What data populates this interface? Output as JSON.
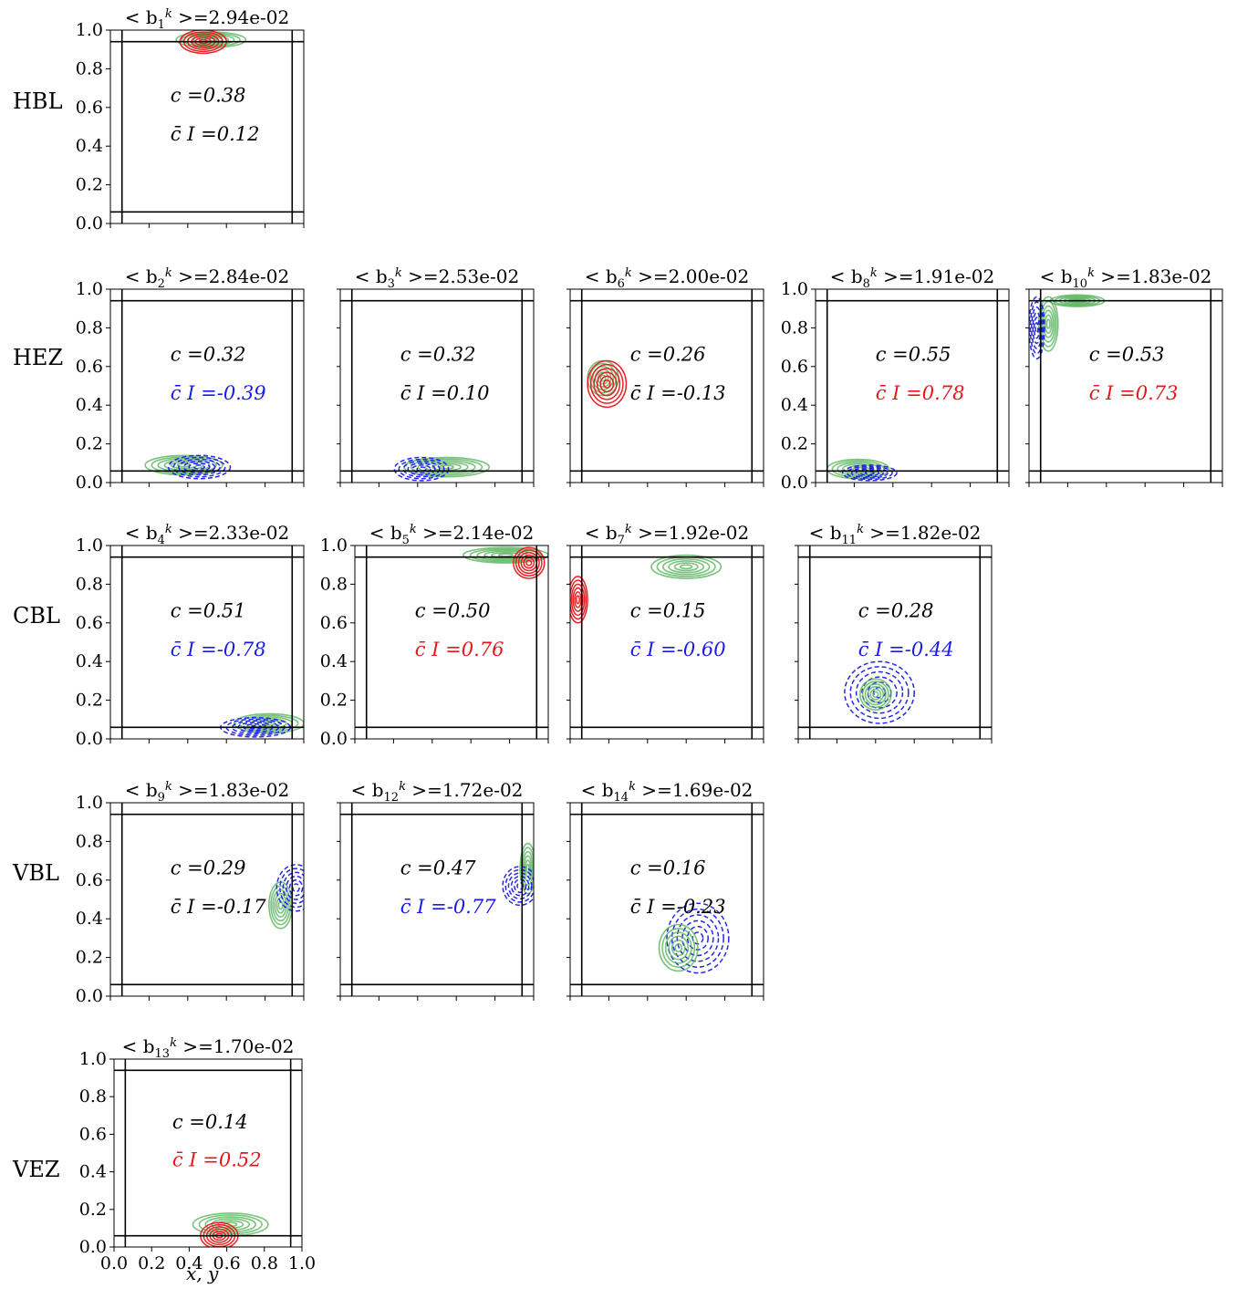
{
  "figure": {
    "row_labels": [
      "HBL",
      "HEZ",
      "CBL",
      "VBL",
      "VEZ"
    ],
    "x_axis_label": "x, y",
    "annotation_c_prefix": "c =",
    "annotation_cI_prefix": "c̄ I =",
    "title_prefix": "< b",
    "title_infix": " >=",
    "colors": {
      "positive": "#e8161b",
      "negative": "#1a1aeb",
      "green": "#4caf50",
      "neutral": "#000000"
    }
  },
  "chart_data": [
    {
      "type": "contour",
      "row": "HBL",
      "title": "< b1k >=2.94e-02",
      "title_sub": "1",
      "title_value": "2.94e-02",
      "c": "0.38",
      "c_I": "0.12",
      "c_I_sign": "neutral",
      "ylim": [
        0,
        1
      ],
      "xlim": [
        0,
        1
      ],
      "yticks": [
        "0.0",
        "0.2",
        "0.4",
        "0.6",
        "0.8",
        "1.0"
      ],
      "lines": [
        0.06,
        0.94
      ],
      "blobs": [
        {
          "color": "green",
          "x": 0.52,
          "y": 0.95,
          "rx": 0.18,
          "ry": 0.04,
          "dashed": false
        },
        {
          "color": "red",
          "x": 0.48,
          "y": 0.94,
          "rx": 0.12,
          "ry": 0.06,
          "dashed": false
        }
      ]
    },
    {
      "type": "contour",
      "row": "HEZ",
      "title": "< b2k >=2.84e-02",
      "title_sub": "2",
      "title_value": "2.84e-02",
      "c": "0.32",
      "c_I": "-0.39",
      "c_I_sign": "negative",
      "ylim": [
        0,
        1
      ],
      "xlim": [
        0,
        1
      ],
      "yticks": [
        "0.0",
        "0.2",
        "0.4",
        "0.6",
        "0.8",
        "1.0"
      ],
      "lines": [
        0.06,
        0.94
      ],
      "blobs": [
        {
          "color": "green",
          "x": 0.38,
          "y": 0.09,
          "rx": 0.2,
          "ry": 0.05,
          "dashed": false
        },
        {
          "color": "blue",
          "x": 0.46,
          "y": 0.08,
          "rx": 0.16,
          "ry": 0.06,
          "dashed": true
        }
      ]
    },
    {
      "type": "contour",
      "row": "HEZ",
      "title": "< b3k >=2.53e-02",
      "title_sub": "3",
      "title_value": "2.53e-02",
      "c": "0.32",
      "c_I": "0.10",
      "c_I_sign": "neutral",
      "ylim": [
        0,
        1
      ],
      "xlim": [
        0,
        1
      ],
      "yticks": [],
      "lines": [
        0.06,
        0.94
      ],
      "blobs": [
        {
          "color": "green",
          "x": 0.55,
          "y": 0.08,
          "rx": 0.22,
          "ry": 0.05,
          "dashed": false
        },
        {
          "color": "blue",
          "x": 0.42,
          "y": 0.07,
          "rx": 0.14,
          "ry": 0.06,
          "dashed": true
        }
      ]
    },
    {
      "type": "contour",
      "row": "HEZ",
      "title": "< b6k >=2.00e-02",
      "title_sub": "6",
      "title_value": "2.00e-02",
      "c": "0.26",
      "c_I": "-0.13",
      "c_I_sign": "neutral",
      "ylim": [
        0,
        1
      ],
      "xlim": [
        0,
        1
      ],
      "yticks": [],
      "lines": [
        0.06,
        0.94
      ],
      "blobs": [
        {
          "color": "green",
          "x": 0.17,
          "y": 0.54,
          "rx": 0.08,
          "ry": 0.09,
          "dashed": false
        },
        {
          "color": "red",
          "x": 0.19,
          "y": 0.51,
          "rx": 0.1,
          "ry": 0.12,
          "dashed": false
        }
      ]
    },
    {
      "type": "contour",
      "row": "HEZ",
      "title": "< b8k >=1.91e-02",
      "title_sub": "8",
      "title_value": "1.91e-02",
      "c": "0.55",
      "c_I": "0.78",
      "c_I_sign": "positive",
      "ylim": [
        0,
        1
      ],
      "xlim": [
        0,
        1
      ],
      "yticks": [
        "0.0",
        "0.2",
        "0.4",
        "0.6",
        "0.8",
        "1.0"
      ],
      "lines": [
        0.06,
        0.94
      ],
      "blobs": [
        {
          "color": "green",
          "x": 0.22,
          "y": 0.07,
          "rx": 0.16,
          "ry": 0.05,
          "dashed": false
        },
        {
          "color": "blue",
          "x": 0.28,
          "y": 0.05,
          "rx": 0.14,
          "ry": 0.04,
          "dashed": true
        }
      ]
    },
    {
      "type": "contour",
      "row": "HEZ",
      "title": "< b10k >=1.83e-02",
      "title_sub": "10",
      "title_value": "1.83e-02",
      "c": "0.53",
      "c_I": "0.73",
      "c_I_sign": "positive",
      "ylim": [
        0,
        1
      ],
      "xlim": [
        0,
        1
      ],
      "yticks": [],
      "lines": [
        0.06,
        0.94
      ],
      "blobs": [
        {
          "color": "green",
          "x": 0.1,
          "y": 0.82,
          "rx": 0.05,
          "ry": 0.14,
          "dashed": false
        },
        {
          "color": "green",
          "x": 0.25,
          "y": 0.94,
          "rx": 0.14,
          "ry": 0.03,
          "dashed": false
        },
        {
          "color": "blue",
          "x": 0.04,
          "y": 0.8,
          "rx": 0.04,
          "ry": 0.16,
          "dashed": true
        }
      ]
    },
    {
      "type": "contour",
      "row": "CBL",
      "title": "< b4k >=2.33e-02",
      "title_sub": "4",
      "title_value": "2.33e-02",
      "c": "0.51",
      "c_I": "-0.78",
      "c_I_sign": "negative",
      "ylim": [
        0,
        1
      ],
      "xlim": [
        0,
        1
      ],
      "yticks": [
        "0.0",
        "0.2",
        "0.4",
        "0.6",
        "0.8",
        "1.0"
      ],
      "lines": [
        0.06,
        0.94
      ],
      "blobs": [
        {
          "color": "green",
          "x": 0.82,
          "y": 0.08,
          "rx": 0.18,
          "ry": 0.05,
          "dashed": false
        },
        {
          "color": "blue",
          "x": 0.75,
          "y": 0.06,
          "rx": 0.18,
          "ry": 0.05,
          "dashed": true
        }
      ]
    },
    {
      "type": "contour",
      "row": "CBL",
      "title": "< b5k >=2.14e-02",
      "title_sub": "5",
      "title_value": "2.14e-02",
      "c": "0.50",
      "c_I": "0.76",
      "c_I_sign": "positive",
      "ylim": [
        0,
        1
      ],
      "xlim": [
        0,
        1
      ],
      "yticks": [
        "0.0",
        "0.2",
        "0.4",
        "0.6",
        "0.8",
        "1.0"
      ],
      "lines": [
        0.06,
        0.94
      ],
      "blobs": [
        {
          "color": "green",
          "x": 0.78,
          "y": 0.95,
          "rx": 0.22,
          "ry": 0.04,
          "dashed": false
        },
        {
          "color": "red",
          "x": 0.9,
          "y": 0.91,
          "rx": 0.08,
          "ry": 0.08,
          "dashed": false
        }
      ]
    },
    {
      "type": "contour",
      "row": "CBL",
      "title": "< b7k >=1.92e-02",
      "title_sub": "7",
      "title_value": "1.92e-02",
      "c": "0.15",
      "c_I": "-0.60",
      "c_I_sign": "negative",
      "ylim": [
        0,
        1
      ],
      "xlim": [
        0,
        1
      ],
      "yticks": [],
      "lines": [
        0.06,
        0.94
      ],
      "blobs": [
        {
          "color": "green",
          "x": 0.6,
          "y": 0.89,
          "rx": 0.18,
          "ry": 0.06,
          "dashed": false
        },
        {
          "color": "red",
          "x": 0.04,
          "y": 0.72,
          "rx": 0.05,
          "ry": 0.12,
          "dashed": false
        }
      ]
    },
    {
      "type": "contour",
      "row": "CBL",
      "title": "< b11k >=1.82e-02",
      "title_sub": "11",
      "title_value": "1.82e-02",
      "c": "0.28",
      "c_I": "-0.44",
      "c_I_sign": "negative",
      "ylim": [
        0,
        1
      ],
      "xlim": [
        0,
        1
      ],
      "yticks": [],
      "lines": [
        0.06,
        0.94
      ],
      "blobs": [
        {
          "color": "blue",
          "x": 0.42,
          "y": 0.24,
          "rx": 0.18,
          "ry": 0.16,
          "dashed": true
        },
        {
          "color": "green",
          "x": 0.4,
          "y": 0.23,
          "rx": 0.08,
          "ry": 0.08,
          "dashed": false
        }
      ]
    },
    {
      "type": "contour",
      "row": "VBL",
      "title": "< b9k >=1.83e-02",
      "title_sub": "9",
      "title_value": "1.83e-02",
      "c": "0.29",
      "c_I": "-0.17",
      "c_I_sign": "neutral",
      "ylim": [
        0,
        1
      ],
      "xlim": [
        0,
        1
      ],
      "yticks": [
        "0.0",
        "0.2",
        "0.4",
        "0.6",
        "0.8",
        "1.0"
      ],
      "lines": [
        0.06,
        0.94
      ],
      "blobs": [
        {
          "color": "green",
          "x": 0.88,
          "y": 0.47,
          "rx": 0.06,
          "ry": 0.12,
          "dashed": false
        },
        {
          "color": "blue",
          "x": 0.96,
          "y": 0.56,
          "rx": 0.1,
          "ry": 0.12,
          "dashed": true
        }
      ]
    },
    {
      "type": "contour",
      "row": "VBL",
      "title": "< b12k >=1.72e-02",
      "title_sub": "12",
      "title_value": "1.72e-02",
      "c": "0.47",
      "c_I": "-0.77",
      "c_I_sign": "negative",
      "ylim": [
        0,
        1
      ],
      "xlim": [
        0,
        1
      ],
      "yticks": [],
      "lines": [
        0.06,
        0.94
      ],
      "blobs": [
        {
          "color": "green",
          "x": 0.97,
          "y": 0.66,
          "rx": 0.04,
          "ry": 0.13,
          "dashed": false
        },
        {
          "color": "blue",
          "x": 0.93,
          "y": 0.57,
          "rx": 0.09,
          "ry": 0.1,
          "dashed": true
        }
      ]
    },
    {
      "type": "contour",
      "row": "VBL",
      "title": "< b14k >=1.69e-02",
      "title_sub": "14",
      "title_value": "1.69e-02",
      "c": "0.16",
      "c_I": "-0.23",
      "c_I_sign": "neutral",
      "ylim": [
        0,
        1
      ],
      "xlim": [
        0,
        1
      ],
      "yticks": [],
      "lines": [
        0.06,
        0.94
      ],
      "blobs": [
        {
          "color": "blue",
          "x": 0.66,
          "y": 0.3,
          "rx": 0.16,
          "ry": 0.18,
          "dashed": true
        },
        {
          "color": "green",
          "x": 0.56,
          "y": 0.25,
          "rx": 0.1,
          "ry": 0.12,
          "dashed": false
        }
      ]
    },
    {
      "type": "contour",
      "row": "VEZ",
      "title": "< b13k >=1.70e-02",
      "title_sub": "13",
      "title_value": "1.70e-02",
      "c": "0.14",
      "c_I": "0.52",
      "c_I_sign": "positive",
      "ylim": [
        0,
        1
      ],
      "xlim": [
        0,
        1
      ],
      "yticks": [
        "0.0",
        "0.2",
        "0.4",
        "0.6",
        "0.8",
        "1.0"
      ],
      "xticks": [
        "0.0",
        "0.2",
        "0.4",
        "0.6",
        "0.8",
        "1.0"
      ],
      "lines": [
        0.06,
        0.94
      ],
      "blobs": [
        {
          "color": "green",
          "x": 0.62,
          "y": 0.12,
          "rx": 0.2,
          "ry": 0.06,
          "dashed": false
        },
        {
          "color": "red",
          "x": 0.56,
          "y": 0.06,
          "rx": 0.1,
          "ry": 0.07,
          "dashed": false
        }
      ]
    }
  ]
}
